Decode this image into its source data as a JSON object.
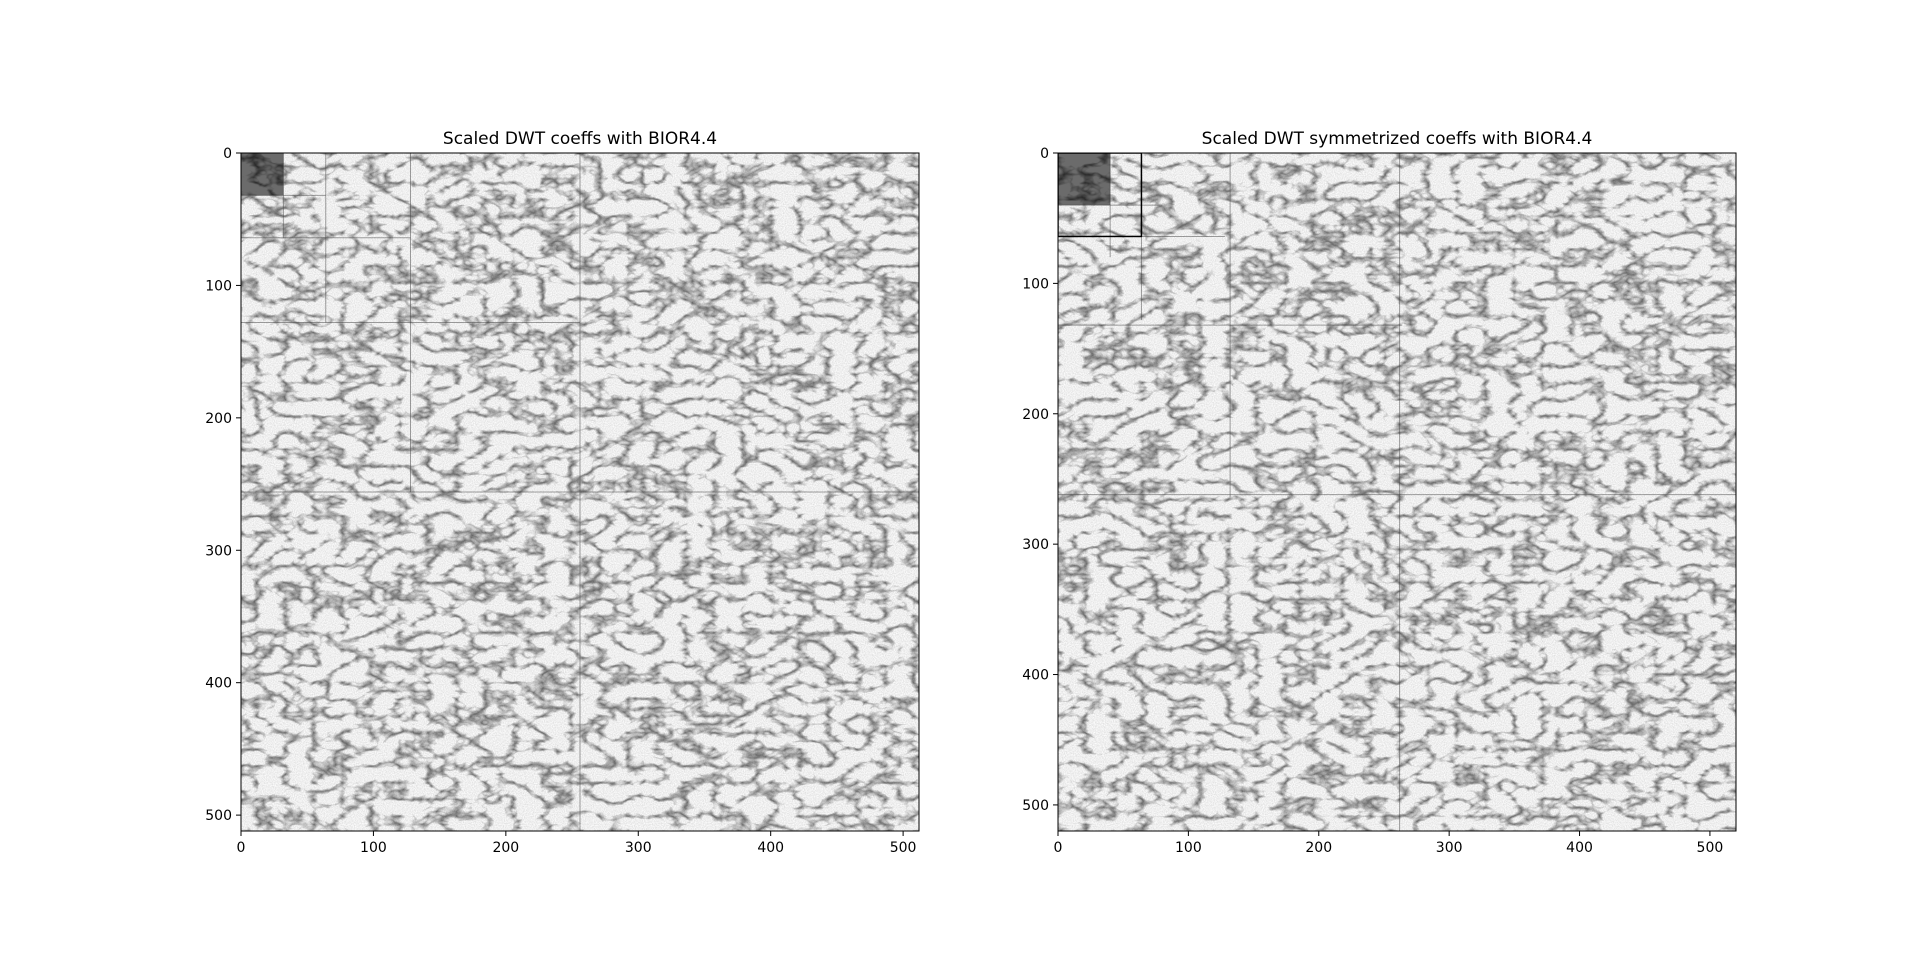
{
  "chart_data": [
    {
      "type": "heatmap",
      "title": "Scaled DWT coeffs with BIOR4.4",
      "xlim": [
        0,
        512
      ],
      "ylim": [
        512,
        0
      ],
      "x_ticks": [
        0,
        100,
        200,
        300,
        400,
        500
      ],
      "y_ticks": [
        0,
        100,
        200,
        300,
        400,
        500
      ],
      "colormap": "gray_r",
      "approximation_extent": 32,
      "subband_boundaries": [
        32,
        64,
        128,
        256,
        512
      ]
    },
    {
      "type": "heatmap",
      "title": "Scaled DWT symmetrized coeffs with BIOR4.4",
      "xlim": [
        0,
        520
      ],
      "ylim": [
        520,
        0
      ],
      "x_ticks": [
        0,
        100,
        200,
        300,
        400,
        500
      ],
      "y_ticks": [
        0,
        100,
        200,
        300,
        400,
        500
      ],
      "colormap": "gray_r",
      "approximation_extent": 40,
      "highlight_box_extent": 64,
      "subband_boundaries": [
        40,
        64,
        132,
        262,
        520
      ]
    }
  ]
}
